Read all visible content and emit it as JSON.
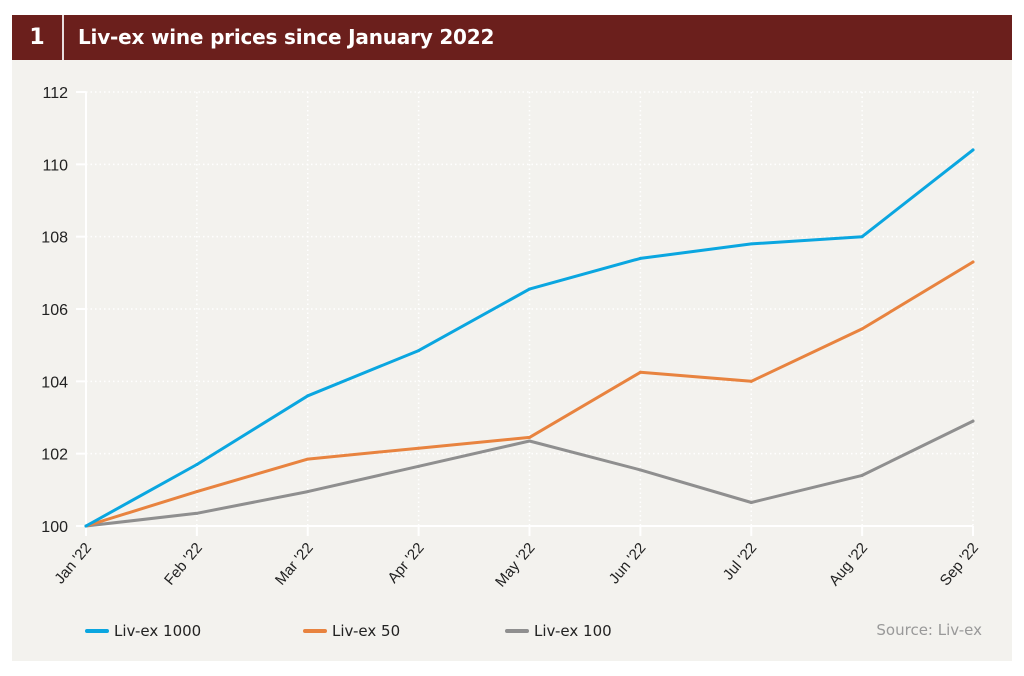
{
  "header": {
    "number": "1",
    "title": "Liv-ex wine prices since January 2022"
  },
  "source": "Source: Liv-ex",
  "chart_data": {
    "type": "line",
    "title": "Liv-ex wine prices since January 2022",
    "xlabel": "",
    "ylabel": "",
    "categories": [
      "Jan '22",
      "Feb '22",
      "Mar '22",
      "Apr '22",
      "May '22",
      "Jun '22",
      "Jul '22",
      "Aug '22",
      "Sep '22"
    ],
    "yticks": [
      100,
      102,
      104,
      106,
      108,
      110,
      112
    ],
    "ylim": [
      100,
      112
    ],
    "grid": true,
    "legend_position": "bottom",
    "series": [
      {
        "name": "Liv-ex 1000",
        "color": "#0aa6e0",
        "values": [
          100,
          101.7,
          103.6,
          104.85,
          106.55,
          107.4,
          107.8,
          108.0,
          110.4
        ]
      },
      {
        "name": "Liv-ex 50",
        "color": "#e8833f",
        "values": [
          100,
          100.95,
          101.85,
          102.15,
          102.45,
          104.25,
          104.0,
          105.45,
          107.3
        ]
      },
      {
        "name": "Liv-ex 100",
        "color": "#8f8f8f",
        "values": [
          100,
          100.35,
          100.95,
          101.65,
          102.35,
          101.55,
          100.65,
          101.4,
          102.9
        ]
      }
    ]
  }
}
